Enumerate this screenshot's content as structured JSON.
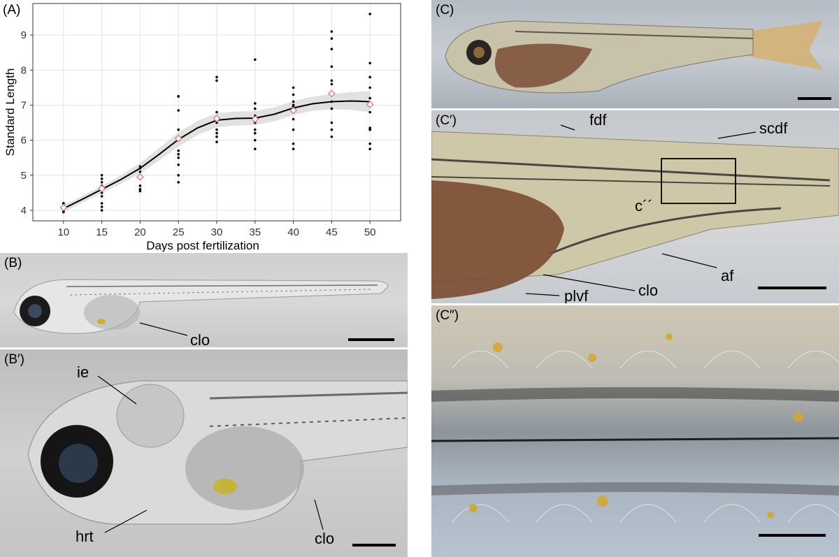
{
  "panels": {
    "A": {
      "label": "(A)"
    },
    "B": {
      "label": "(B)",
      "annotations": {
        "clo": "clo"
      }
    },
    "Bp": {
      "label": "(B′)",
      "annotations": {
        "ie": "ie",
        "hrt": "hrt",
        "clo": "clo"
      }
    },
    "C": {
      "label": "(C)"
    },
    "Cp": {
      "label": "(C′)",
      "annotations": {
        "fdf": "fdf",
        "scdf": "scdf",
        "c2": "c´´",
        "af": "af",
        "clo": "clo",
        "plvf": "plvf"
      }
    },
    "Cpp": {
      "label": "(C″)"
    }
  },
  "colors": {
    "mean_marker": "#e07a7a",
    "smooth_line": "#000000",
    "ribbon": "#d9d9d9"
  },
  "chart_data": {
    "type": "scatter",
    "xlabel": "Days post fertilization",
    "ylabel": "Standard Length",
    "xlim": [
      6,
      54
    ],
    "ylim": [
      3.7,
      9.9
    ],
    "xticks": [
      10,
      15,
      20,
      25,
      30,
      35,
      40,
      45,
      50
    ],
    "yticks": [
      4,
      5,
      6,
      7,
      8,
      9
    ],
    "grid": true,
    "points": {
      "10": [
        4.0,
        4.05,
        4.1,
        4.1,
        4.15,
        4.2,
        4.2,
        3.95
      ],
      "15": [
        4.0,
        4.2,
        4.4,
        4.5,
        4.6,
        4.7,
        4.8,
        4.9,
        5.0,
        4.1
      ],
      "20": [
        4.55,
        4.6,
        4.6,
        4.7,
        4.9,
        5.0,
        5.1,
        5.2,
        5.25
      ],
      "25": [
        4.8,
        5.0,
        5.3,
        5.5,
        5.6,
        5.7,
        6.0,
        6.3,
        6.85,
        7.25,
        7.25,
        7.25
      ],
      "30": [
        5.95,
        6.1,
        6.2,
        6.3,
        6.5,
        6.6,
        6.8,
        7.7,
        7.8
      ],
      "35": [
        5.75,
        6.0,
        6.2,
        6.3,
        6.5,
        6.6,
        6.7,
        6.9,
        7.05,
        8.3
      ],
      "40": [
        5.75,
        5.9,
        6.3,
        6.6,
        6.8,
        6.95,
        7.0,
        7.1,
        7.3,
        7.5
      ],
      "45": [
        6.1,
        6.3,
        6.5,
        6.9,
        7.1,
        7.3,
        7.6,
        7.7,
        8.1,
        8.6,
        8.9,
        9.1
      ],
      "50": [
        5.75,
        5.9,
        6.3,
        6.3,
        6.35,
        6.8,
        7.0,
        7.2,
        7.5,
        7.8,
        8.2,
        9.6
      ]
    },
    "means": {
      "x": [
        10,
        15,
        20,
        25,
        30,
        35,
        40,
        45,
        50
      ],
      "y": [
        4.08,
        4.62,
        4.95,
        6.05,
        6.62,
        6.6,
        6.85,
        7.33,
        7.02
      ]
    },
    "smooth": {
      "x": [
        10,
        12.5,
        15,
        17.5,
        20,
        22.5,
        25,
        27.5,
        30,
        32.5,
        35,
        37.5,
        40,
        42.5,
        45,
        47.5,
        50
      ],
      "y": [
        4.05,
        4.32,
        4.6,
        4.88,
        5.2,
        5.6,
        6.02,
        6.35,
        6.57,
        6.62,
        6.63,
        6.74,
        6.92,
        7.04,
        7.1,
        7.12,
        7.1
      ],
      "band": [
        0.1,
        0.1,
        0.1,
        0.12,
        0.15,
        0.18,
        0.2,
        0.2,
        0.2,
        0.2,
        0.2,
        0.2,
        0.2,
        0.2,
        0.22,
        0.25,
        0.3
      ]
    }
  }
}
